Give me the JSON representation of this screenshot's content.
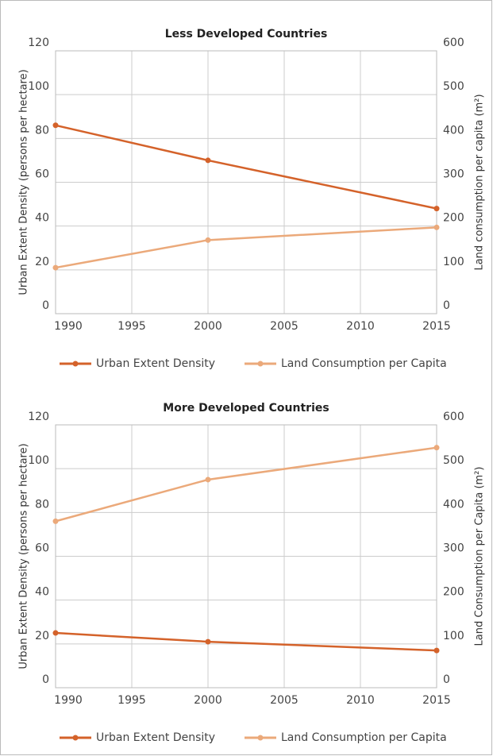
{
  "chart_data": [
    {
      "type": "line",
      "title": "Less Developed Countries",
      "y_label": "Urban Extent Density (persons per hectare)",
      "y2_label": "Land consumption per capita (m²)",
      "x": [
        1990,
        2000,
        2015
      ],
      "xlim": [
        1990,
        2015
      ],
      "xticks": [
        1990,
        1995,
        2000,
        2005,
        2010,
        2015
      ],
      "ylim": [
        0,
        120
      ],
      "yticks": [
        0,
        20,
        40,
        60,
        80,
        100,
        120
      ],
      "y2lim": [
        0,
        600
      ],
      "y2ticks": [
        0,
        100,
        200,
        300,
        400,
        500,
        600
      ],
      "grid": true,
      "legend": "bottom",
      "series": [
        {
          "name": "Urban Extent Density",
          "color": "#d4622a",
          "values": [
            86,
            70,
            48
          ]
        },
        {
          "name": "Land Consumption per Capita",
          "color": "#eba97a",
          "axis": "y2",
          "values": [
            105,
            168,
            197
          ]
        }
      ]
    },
    {
      "type": "line",
      "title": "More Developed Countries",
      "y_label": "Urban Extent Density (persons per hectare)",
      "y2_label": "Land Consumption per Capita (m²)",
      "x": [
        1990,
        2000,
        2015
      ],
      "xlim": [
        1990,
        2015
      ],
      "xticks": [
        1990,
        1995,
        2000,
        2005,
        2010,
        2015
      ],
      "ylim": [
        0,
        120
      ],
      "yticks": [
        0,
        20,
        40,
        60,
        80,
        100,
        120
      ],
      "y2lim": [
        0,
        600
      ],
      "y2ticks": [
        0,
        100,
        200,
        300,
        400,
        500,
        600
      ],
      "grid": true,
      "legend": "bottom",
      "series": [
        {
          "name": "Urban Extent Density",
          "color": "#d4622a",
          "values": [
            25,
            21,
            17
          ]
        },
        {
          "name": "Land Consumption per Capita",
          "color": "#eba97a",
          "axis": "y2",
          "values": [
            380,
            475,
            548
          ]
        }
      ]
    }
  ]
}
